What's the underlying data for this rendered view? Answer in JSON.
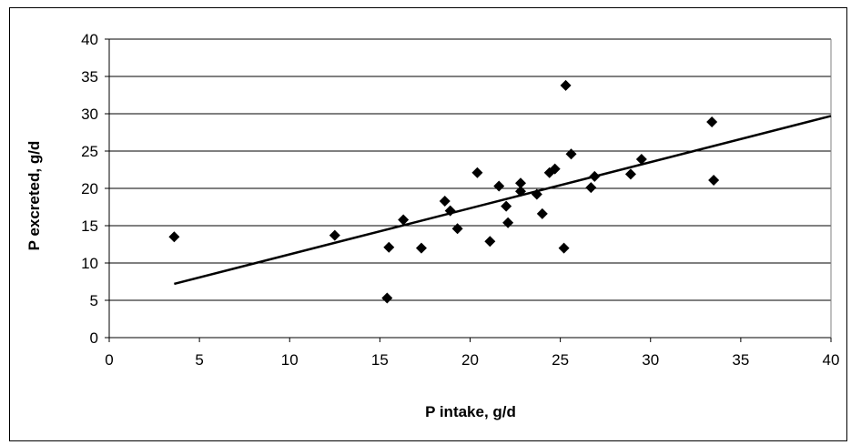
{
  "chart_data": {
    "type": "scatter",
    "title": "",
    "xlabel": "P intake, g/d",
    "ylabel": "P excreted, g/d",
    "xlim": [
      0,
      40
    ],
    "ylim": [
      0,
      40
    ],
    "xticks": [
      0,
      5,
      10,
      15,
      20,
      25,
      30,
      35,
      40
    ],
    "yticks": [
      0,
      5,
      10,
      15,
      20,
      25,
      30,
      35,
      40
    ],
    "grid": "horizontal",
    "legend": "none",
    "marker": "diamond",
    "marker_color": "#000000",
    "points": [
      {
        "x": 3.6,
        "y": 13.5
      },
      {
        "x": 12.5,
        "y": 13.7
      },
      {
        "x": 15.4,
        "y": 5.3
      },
      {
        "x": 15.5,
        "y": 12.1
      },
      {
        "x": 16.3,
        "y": 15.8
      },
      {
        "x": 17.3,
        "y": 12.0
      },
      {
        "x": 18.6,
        "y": 18.3
      },
      {
        "x": 18.9,
        "y": 17.0
      },
      {
        "x": 19.3,
        "y": 14.6
      },
      {
        "x": 20.4,
        "y": 22.1
      },
      {
        "x": 21.1,
        "y": 12.9
      },
      {
        "x": 21.6,
        "y": 20.3
      },
      {
        "x": 22.0,
        "y": 17.6
      },
      {
        "x": 22.1,
        "y": 15.4
      },
      {
        "x": 22.8,
        "y": 20.7
      },
      {
        "x": 22.8,
        "y": 19.6
      },
      {
        "x": 23.7,
        "y": 19.2
      },
      {
        "x": 24.0,
        "y": 16.6
      },
      {
        "x": 24.4,
        "y": 22.1
      },
      {
        "x": 24.7,
        "y": 22.6
      },
      {
        "x": 25.2,
        "y": 12.0
      },
      {
        "x": 25.3,
        "y": 33.8
      },
      {
        "x": 25.6,
        "y": 24.6
      },
      {
        "x": 26.7,
        "y": 20.1
      },
      {
        "x": 26.9,
        "y": 21.6
      },
      {
        "x": 28.9,
        "y": 21.9
      },
      {
        "x": 29.5,
        "y": 23.9
      },
      {
        "x": 33.4,
        "y": 28.9
      },
      {
        "x": 33.5,
        "y": 21.1
      }
    ],
    "trendline": {
      "x": [
        3.6,
        40
      ],
      "y": [
        7.2,
        29.7
      ]
    }
  }
}
